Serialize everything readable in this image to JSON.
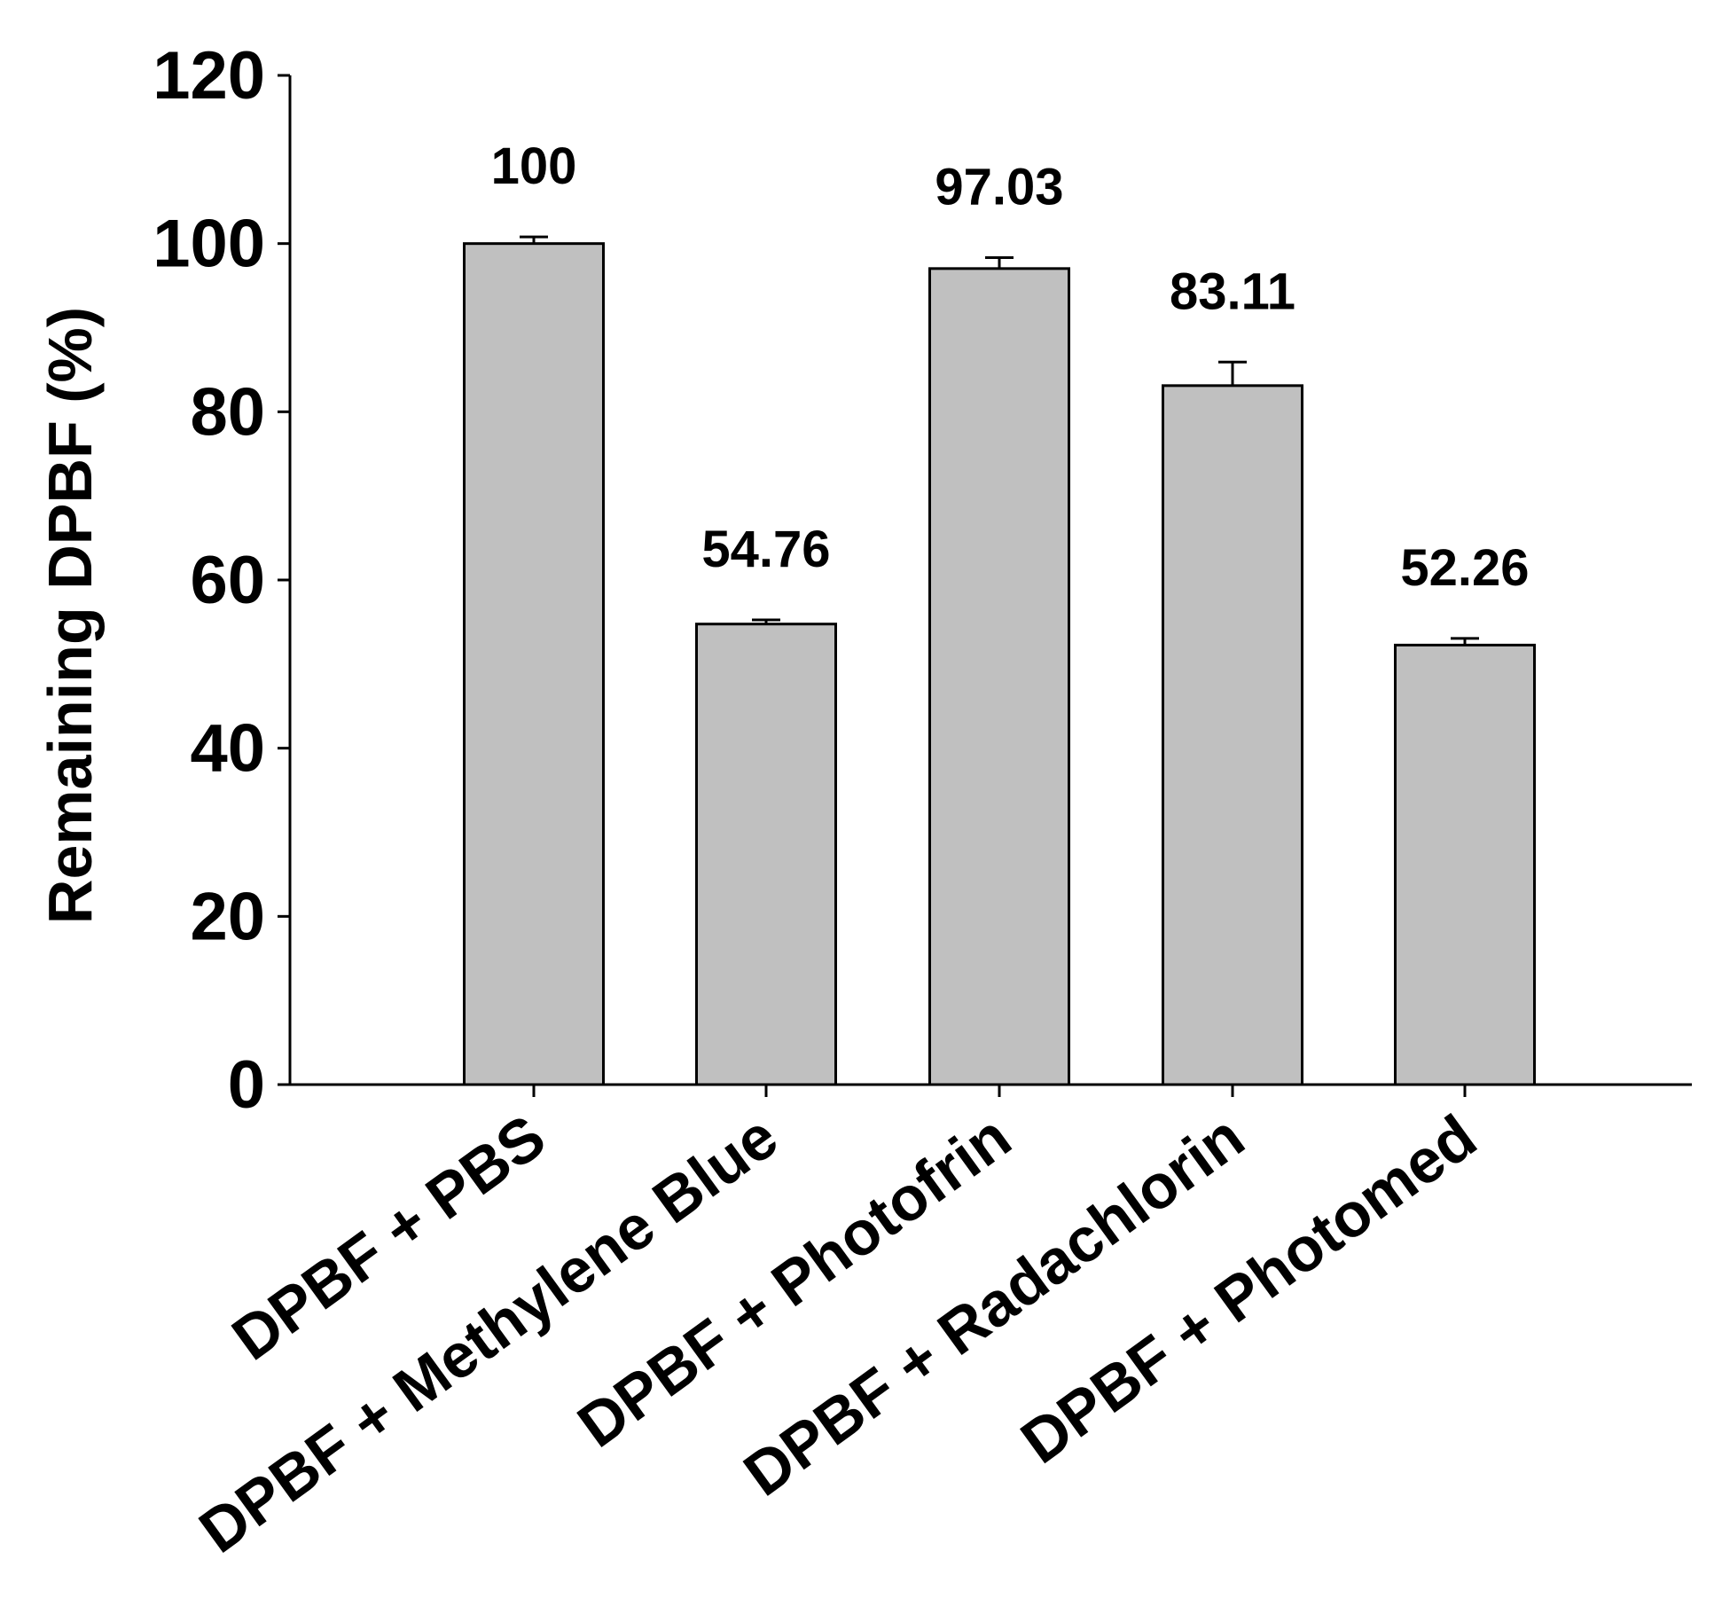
{
  "chart_data": {
    "type": "bar",
    "categories": [
      "DPBF + PBS",
      "DPBF + Methylene Blue",
      "DPBF + Photofrin",
      "DPBF + Radachlorin",
      "DPBF + Photomed"
    ],
    "values": [
      100,
      54.76,
      97.03,
      83.11,
      52.26
    ],
    "error": [
      0.8,
      0.5,
      1.3,
      2.8,
      0.8
    ],
    "data_labels": [
      "100",
      "54.76",
      "97.03",
      "83.11",
      "52.26"
    ],
    "ylabel": "Remaining DPBF (%)",
    "xlabel": "",
    "ylim": [
      0,
      120
    ],
    "yticks": [
      0,
      20,
      40,
      60,
      80,
      100,
      120
    ],
    "bar_color": "#c0c0c0",
    "edge_color": "#000000",
    "grid": false
  }
}
